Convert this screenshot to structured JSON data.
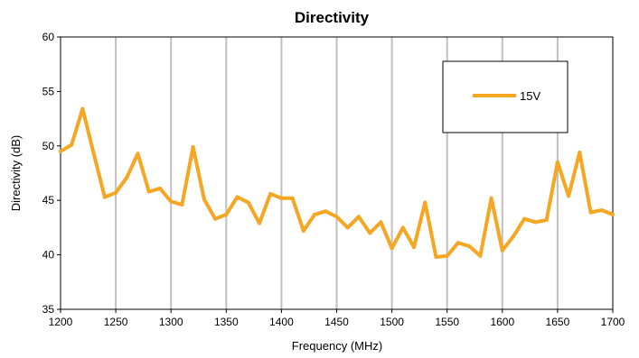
{
  "chart_data": {
    "type": "line",
    "title": "Directivity",
    "xlabel": "Frequency (MHz)",
    "ylabel": "Directivity (dB)",
    "xlim": [
      1200,
      1700
    ],
    "ylim": [
      35,
      60
    ],
    "xticks": [
      1200,
      1250,
      1300,
      1350,
      1400,
      1450,
      1500,
      1550,
      1600,
      1650,
      1700
    ],
    "yticks": [
      35,
      40,
      45,
      50,
      55,
      60
    ],
    "grid": "vertical",
    "legend_position": "top-right",
    "series": [
      {
        "name": "15V",
        "color": "#f5a623",
        "x": [
          1200,
          1210,
          1220,
          1230,
          1240,
          1250,
          1260,
          1270,
          1280,
          1290,
          1300,
          1310,
          1320,
          1330,
          1340,
          1350,
          1360,
          1370,
          1380,
          1390,
          1400,
          1410,
          1420,
          1430,
          1440,
          1450,
          1460,
          1470,
          1480,
          1490,
          1500,
          1510,
          1520,
          1530,
          1540,
          1550,
          1560,
          1570,
          1580,
          1590,
          1600,
          1610,
          1620,
          1630,
          1640,
          1650,
          1660,
          1670,
          1680,
          1690,
          1700
        ],
        "y": [
          49.5,
          50.1,
          53.4,
          49.3,
          45.3,
          45.7,
          47.1,
          49.3,
          45.8,
          46.1,
          44.9,
          44.6,
          49.9,
          45.1,
          43.3,
          43.7,
          45.3,
          44.8,
          42.9,
          45.6,
          45.2,
          45.2,
          42.2,
          43.7,
          44.0,
          43.5,
          42.5,
          43.5,
          42.0,
          43.0,
          40.6,
          42.5,
          40.7,
          44.8,
          39.8,
          39.9,
          41.1,
          40.8,
          39.9,
          45.2,
          40.4,
          41.7,
          43.3,
          43.0,
          43.2,
          48.5,
          45.4,
          49.4,
          43.9,
          44.1,
          43.7
        ]
      }
    ]
  }
}
